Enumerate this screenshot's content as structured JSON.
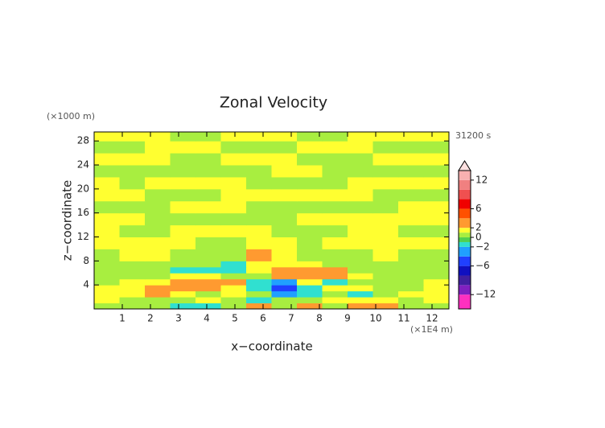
{
  "chart_data": {
    "type": "heatmap",
    "title": "Zonal Velocity",
    "x_label": "x−coordinate",
    "y_label": "z−coordinate",
    "x_unit": "(×1E4 m)",
    "y_unit": "(×1000 m)",
    "time_label": "31200 s",
    "xlim": [
      0,
      12.6
    ],
    "ylim": [
      0,
      29.5
    ],
    "xticks": [
      1,
      2,
      3,
      4,
      5,
      6,
      7,
      8,
      9,
      10,
      11,
      12
    ],
    "yticks": [
      4,
      8,
      12,
      16,
      20,
      24,
      28
    ],
    "xbins": [
      0,
      0.9,
      1.8,
      2.7,
      3.6,
      4.5,
      5.4,
      6.3,
      7.2,
      8.1,
      9,
      9.9,
      10.8,
      11.7,
      12.6
    ],
    "ybins": [
      0,
      1,
      2,
      3,
      4,
      5,
      6,
      7,
      8,
      10,
      12,
      14,
      16,
      18,
      20,
      22,
      24,
      26,
      28,
      29.5
    ],
    "values": [
      [
        0.5,
        0.5,
        0.5,
        -1.5,
        -1.5,
        0.5,
        3,
        0.5,
        3,
        0.5,
        3,
        3,
        0.5,
        0.5
      ],
      [
        1.5,
        0.5,
        0.5,
        0.5,
        1.5,
        0.5,
        -1.5,
        0.5,
        0.5,
        1.5,
        1.5,
        1.5,
        0.5,
        1.5
      ],
      [
        1.5,
        1.5,
        3,
        1.5,
        0.5,
        1.5,
        0.5,
        -2.5,
        -1.5,
        0.5,
        -1.5,
        0.5,
        1.5,
        1.5
      ],
      [
        1.5,
        1.5,
        3,
        3,
        3,
        1.5,
        -1.5,
        -5,
        -1.5,
        1.5,
        1.5,
        0.5,
        0.5,
        1.5
      ],
      [
        0.5,
        1.5,
        1.5,
        3,
        3,
        3,
        -1.5,
        -3,
        1.5,
        -1.5,
        0.5,
        0.5,
        0.5,
        1.5
      ],
      [
        0.5,
        0.5,
        0.5,
        1.5,
        1.5,
        0.5,
        0.5,
        3,
        3,
        3,
        1.5,
        0.5,
        0.5,
        0.5
      ],
      [
        0.5,
        0.5,
        0.5,
        -2,
        -1.5,
        -1.5,
        1.5,
        3,
        3,
        3,
        0.5,
        0.5,
        0.5,
        0.5
      ],
      [
        0.5,
        0.5,
        0.5,
        0.5,
        0.5,
        -1.5,
        1.5,
        1.5,
        1.5,
        0.5,
        0.5,
        0.5,
        0.5,
        0.5
      ],
      [
        0.5,
        1.5,
        1.5,
        0.5,
        0.5,
        0.5,
        3,
        1.5,
        0.5,
        0.5,
        0.5,
        1.5,
        0.5,
        0.5
      ],
      [
        1.5,
        1.5,
        1.5,
        1.5,
        0.5,
        0.5,
        1.5,
        1.5,
        0.5,
        1.5,
        1.5,
        1.5,
        1.5,
        1.5
      ],
      [
        1.5,
        0.5,
        0.5,
        1.5,
        1.5,
        1.5,
        1.5,
        0.5,
        0.5,
        0.5,
        1.5,
        1.5,
        0.5,
        0.5
      ],
      [
        1.5,
        1.5,
        0.5,
        0.5,
        0.5,
        0.5,
        0.5,
        0.5,
        1.5,
        1.5,
        1.5,
        1.5,
        1.5,
        1.5
      ],
      [
        0.5,
        0.5,
        0.5,
        1.5,
        1.5,
        1.5,
        0.5,
        0.5,
        0.5,
        0.5,
        0.5,
        0.5,
        1.5,
        1.5
      ],
      [
        1.5,
        1.5,
        0.5,
        0.5,
        0.5,
        1.5,
        1.5,
        1.5,
        1.5,
        1.5,
        1.5,
        0.5,
        0.5,
        0.5
      ],
      [
        1.5,
        0.5,
        1.5,
        1.5,
        1.5,
        1.5,
        0.5,
        0.5,
        0.5,
        0.5,
        1.5,
        1.5,
        1.5,
        1.5
      ],
      [
        0.5,
        0.5,
        0.5,
        0.5,
        0.5,
        0.5,
        0.5,
        1.5,
        1.5,
        0.5,
        0.5,
        0.5,
        0.5,
        0.5
      ],
      [
        1.5,
        1.5,
        1.5,
        0.5,
        0.5,
        1.5,
        1.5,
        1.5,
        0.5,
        0.5,
        0.5,
        1.5,
        1.5,
        1.5
      ],
      [
        0.5,
        0.5,
        1.5,
        1.5,
        1.5,
        0.5,
        0.5,
        0.5,
        1.5,
        1.5,
        1.5,
        0.5,
        0.5,
        0.5
      ],
      [
        1.5,
        1.5,
        1.5,
        0.5,
        0.5,
        1.5,
        1.5,
        1.5,
        0.5,
        0.5,
        1.5,
        1.5,
        1.5,
        1.5
      ]
    ],
    "levels": [
      -15,
      -12,
      -10,
      -8,
      -6,
      -4,
      -2,
      -1,
      0,
      1,
      2,
      4,
      6,
      8,
      10,
      12,
      14
    ],
    "level_colors": [
      "#ff30c0",
      "#8020c0",
      "#4020a0",
      "#1010c0",
      "#2040ff",
      "#20a0ff",
      "#30e0d0",
      "#50d050",
      "#a8ee40",
      "#ffff30",
      "#ff9a30",
      "#ff5000",
      "#f00000",
      "#f05050",
      "#f08080",
      "#f8b0b0"
    ],
    "clim": [
      -15,
      14
    ],
    "cbar_ticks": [
      12,
      6,
      2,
      0,
      {
        "value": -2,
        "label": "−2"
      },
      {
        "value": -6,
        "label": "−6"
      },
      {
        "value": -12,
        "label": "−12"
      }
    ]
  }
}
